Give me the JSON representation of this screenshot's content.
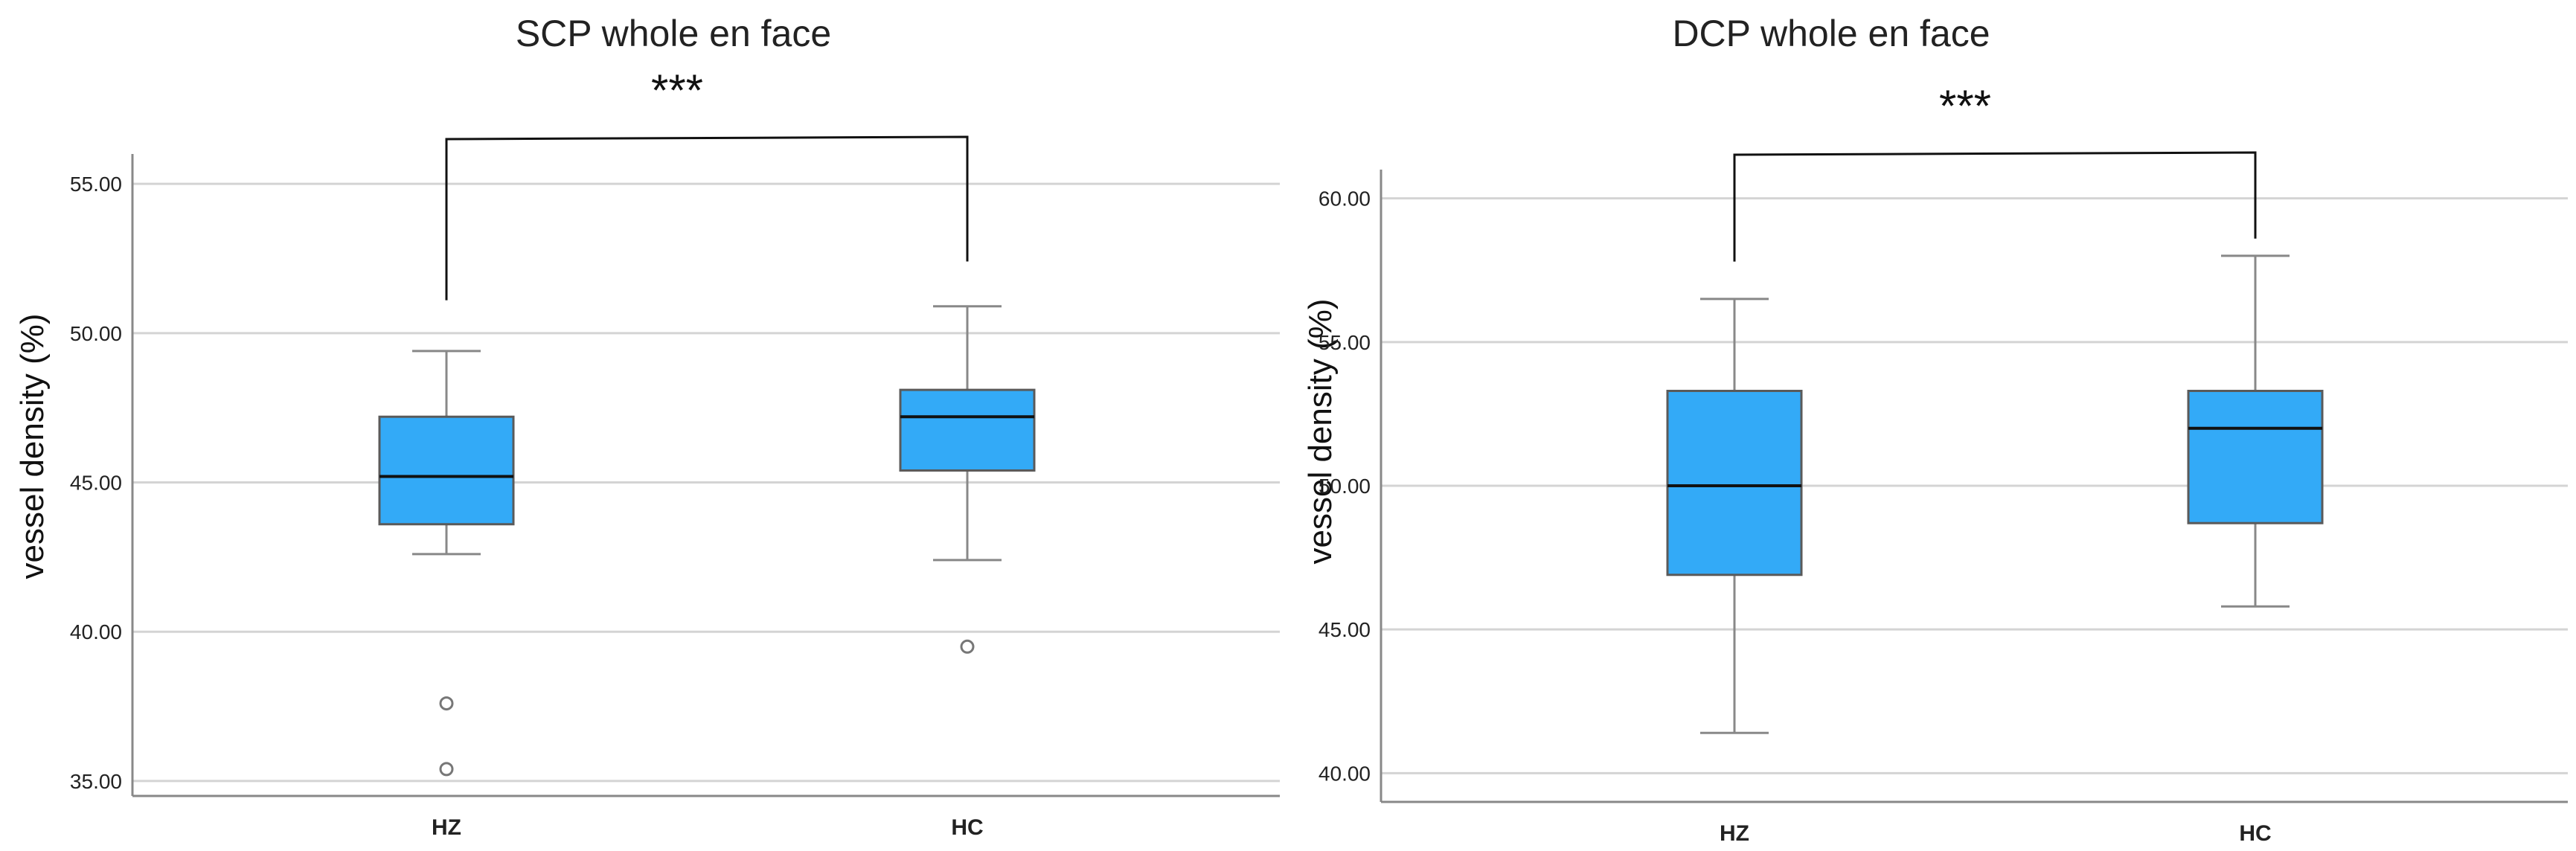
{
  "chart_data": [
    {
      "type": "box",
      "title": "SCP whole en face",
      "ylabel": "vessel density (%)",
      "xlabel": "",
      "ylim": [
        34.5,
        56.0
      ],
      "yticks": [
        "35.00",
        "40.00",
        "45.00",
        "50.00",
        "55.00"
      ],
      "yticks_values": [
        35,
        40,
        45,
        50,
        55
      ],
      "grid": true,
      "categories": [
        "HZ",
        "HC"
      ],
      "boxes": [
        {
          "category": "HZ",
          "whisker_low": 42.6,
          "q1": 43.6,
          "median": 45.2,
          "q3": 47.2,
          "whisker_high": 49.4,
          "outliers": [
            37.6,
            35.4
          ]
        },
        {
          "category": "HC",
          "whisker_low": 42.4,
          "q1": 45.4,
          "median": 47.2,
          "q3": 48.1,
          "whisker_high": 50.9,
          "outliers": [
            39.5
          ]
        }
      ],
      "significance": {
        "label": "***",
        "left_y": 51.1,
        "right_y": 52.4,
        "bar_y": 56.0
      },
      "box_color": "#33aaf7"
    },
    {
      "type": "box",
      "title": "DCP whole en face",
      "ylabel": "vessel density (%)",
      "xlabel": "",
      "ylim": [
        39.0,
        61.0
      ],
      "yticks": [
        "40.00",
        "45.00",
        "50.00",
        "55.00",
        "60.00"
      ],
      "yticks_values": [
        40,
        45,
        50,
        55,
        60
      ],
      "grid": true,
      "categories": [
        "HZ",
        "HC"
      ],
      "boxes": [
        {
          "category": "HZ",
          "whisker_low": 41.4,
          "q1": 46.9,
          "median": 50.0,
          "q3": 53.3,
          "whisker_high": 56.5,
          "outliers": []
        },
        {
          "category": "HC",
          "whisker_low": 45.8,
          "q1": 48.7,
          "median": 52.0,
          "q3": 53.3,
          "whisker_high": 58.0,
          "outliers": []
        }
      ],
      "significance": {
        "label": "***",
        "left_y": 57.8,
        "right_y": 58.6,
        "bar_y": 61.0
      },
      "box_color": "#33aaf7"
    }
  ]
}
